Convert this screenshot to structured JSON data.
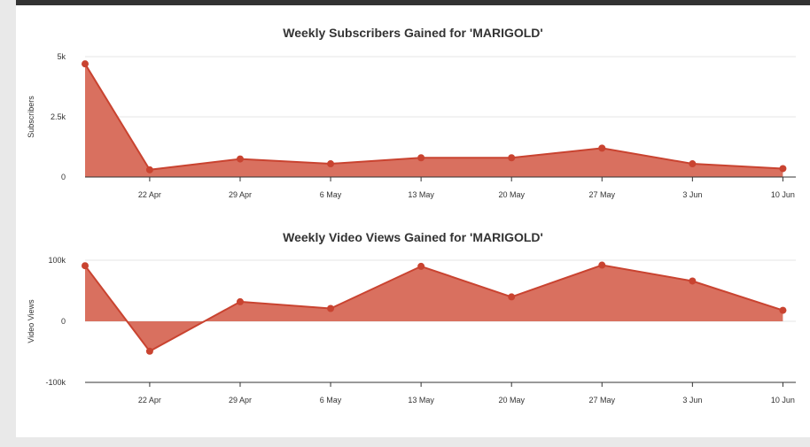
{
  "colors": {
    "area_fill": "#d9705f",
    "line": "#c94330",
    "point": "#c94330",
    "grid": "#e6e6e6",
    "axis": "#333333"
  },
  "chart_data": [
    {
      "type": "area",
      "title": "Weekly Subscribers Gained for 'MARIGOLD'",
      "ylabel": "Subscribers",
      "xlabel": "",
      "grid": "horizontal",
      "legend": "none",
      "x_tick_labels": [
        "22 Apr",
        "29 Apr",
        "6 May",
        "13 May",
        "20 May",
        "27 May",
        "3 Jun",
        "10 Jun"
      ],
      "x_tick_dates": [
        "2018-04-22",
        "2018-04-29",
        "2018-05-06",
        "2018-05-13",
        "2018-05-20",
        "2018-05-27",
        "2018-06-03",
        "2018-06-10"
      ],
      "x_range": [
        "2018-04-17",
        "2018-06-11"
      ],
      "y_tick_labels": [
        "0",
        "2.5k",
        "5k"
      ],
      "y_tick_values": [
        0,
        2500,
        5000
      ],
      "ylim": [
        0,
        5000
      ],
      "x": [
        "2018-04-17",
        "2018-04-22",
        "2018-04-29",
        "2018-05-06",
        "2018-05-13",
        "2018-05-20",
        "2018-05-27",
        "2018-06-03",
        "2018-06-10"
      ],
      "values": [
        4700,
        300,
        750,
        550,
        800,
        800,
        1200,
        550,
        350
      ]
    },
    {
      "type": "area",
      "title": "Weekly Video Views Gained for 'MARIGOLD'",
      "ylabel": "Video Views",
      "xlabel": "",
      "grid": "horizontal",
      "legend": "none",
      "x_tick_labels": [
        "22 Apr",
        "29 Apr",
        "6 May",
        "13 May",
        "20 May",
        "27 May",
        "3 Jun",
        "10 Jun"
      ],
      "x_tick_dates": [
        "2018-04-22",
        "2018-04-29",
        "2018-05-06",
        "2018-05-13",
        "2018-05-20",
        "2018-05-27",
        "2018-06-03",
        "2018-06-10"
      ],
      "x_range": [
        "2018-04-17",
        "2018-06-11"
      ],
      "y_tick_labels": [
        "-100k",
        "0",
        "100k"
      ],
      "y_tick_values": [
        -100000,
        0,
        100000
      ],
      "ylim": [
        -100000,
        100000
      ],
      "x": [
        "2018-04-17",
        "2018-04-22",
        "2018-04-29",
        "2018-05-06",
        "2018-05-13",
        "2018-05-20",
        "2018-05-27",
        "2018-06-03",
        "2018-06-10"
      ],
      "values": [
        91000,
        -49000,
        32000,
        21000,
        90000,
        40000,
        92000,
        66000,
        18000
      ]
    }
  ]
}
